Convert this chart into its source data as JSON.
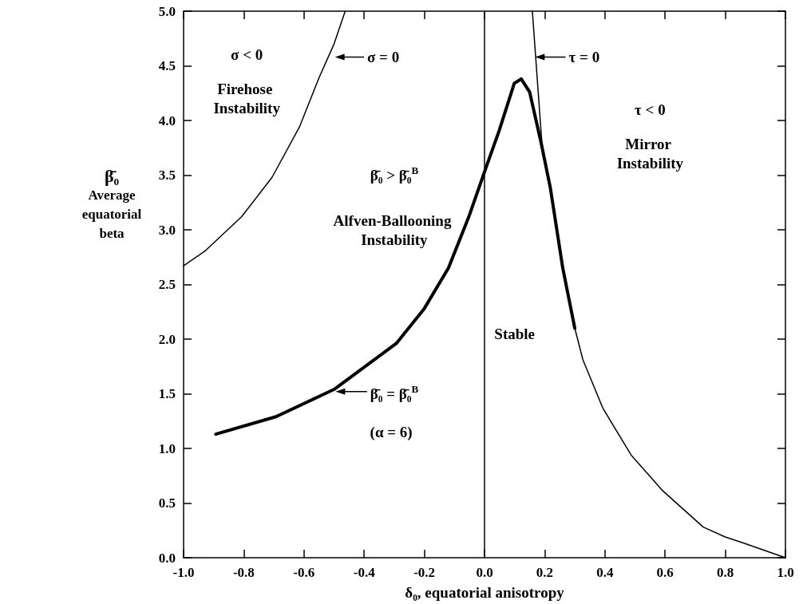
{
  "chart_data": {
    "type": "line",
    "xlabel": "δ₀, equatorial anisotropy",
    "ylabel": "β̄₀\nAverage\nequatorial\nbeta",
    "xlim": [
      -1.0,
      1.0
    ],
    "ylim": [
      0.0,
      5.0
    ],
    "xticks": [
      {
        "value": -1.0,
        "label": "-1.0"
      },
      {
        "value": -0.8,
        "label": "-0.8"
      },
      {
        "value": -0.6,
        "label": "-0.6"
      },
      {
        "value": -0.4,
        "label": "-0.4"
      },
      {
        "value": -0.2,
        "label": "-0.2"
      },
      {
        "value": 0.0,
        "label": "0.0"
      },
      {
        "value": 0.2,
        "label": "0.2"
      },
      {
        "value": 0.4,
        "label": "0.4"
      },
      {
        "value": 0.6,
        "label": "0.6"
      },
      {
        "value": 0.8,
        "label": "0.8"
      },
      {
        "value": 1.0,
        "label": "1.0"
      }
    ],
    "yticks": [
      {
        "value": 0.0,
        "label": "0.0"
      },
      0.5,
      {
        "value": 1.0,
        "label": "1.0"
      },
      1.5,
      {
        "value": 2.0,
        "label": "2.0"
      },
      2.5,
      {
        "value": 3.0,
        "label": "3.0"
      },
      3.5,
      {
        "value": 4.0,
        "label": "4.0"
      },
      4.5,
      {
        "value": 5.0,
        "label": "5.0"
      }
    ],
    "grid": false,
    "marker": "none",
    "line_style": "solid",
    "series": [
      {
        "color": "#000000",
        "x": [
          -1.0,
          -0.927,
          -0.807,
          -0.706,
          -0.615,
          -0.55,
          -0.5,
          -0.463
        ],
        "values": [
          2.67,
          2.81,
          3.12,
          3.48,
          3.94,
          4.39,
          4.7,
          5.0
        ]
      },
      {
        "color": "#000000",
        "x": [
          -0.893,
          -0.693,
          -0.5,
          -0.293,
          -0.2,
          -0.12,
          -0.052,
          0.0,
          0.049,
          0.099,
          0.122,
          0.15,
          0.187,
          0.219,
          0.26,
          0.3
        ],
        "values": [
          1.13,
          1.29,
          1.54,
          1.96,
          2.28,
          2.65,
          3.12,
          3.53,
          3.91,
          4.34,
          4.38,
          4.26,
          3.81,
          3.38,
          2.65,
          2.1
        ]
      },
      {
        "color": "#000000",
        "x": [
          0.159,
          0.191,
          0.22,
          0.26,
          0.3,
          0.327,
          0.393,
          0.487,
          0.593,
          0.727,
          0.8,
          0.86,
          1.0
        ],
        "values": [
          5.0,
          3.78,
          3.38,
          2.65,
          2.1,
          1.81,
          1.37,
          0.94,
          0.61,
          0.28,
          0.19,
          0.135,
          0.0
        ]
      }
    ],
    "ref_lines": [
      {
        "axis": "x",
        "value": 0.0,
        "color": "#000000"
      }
    ],
    "annotations": [
      "σ = 0",
      "τ = 0",
      "β̄₀ = β̄₀$^{B}$",
      "(α = 6)",
      "σ < 0",
      "Firehose Instability",
      "β̄₀ > β̄₀$^{B}$",
      "Alfven-Ballooning Instability",
      "Stable",
      "τ < 0",
      "Mirror Instability"
    ]
  }
}
